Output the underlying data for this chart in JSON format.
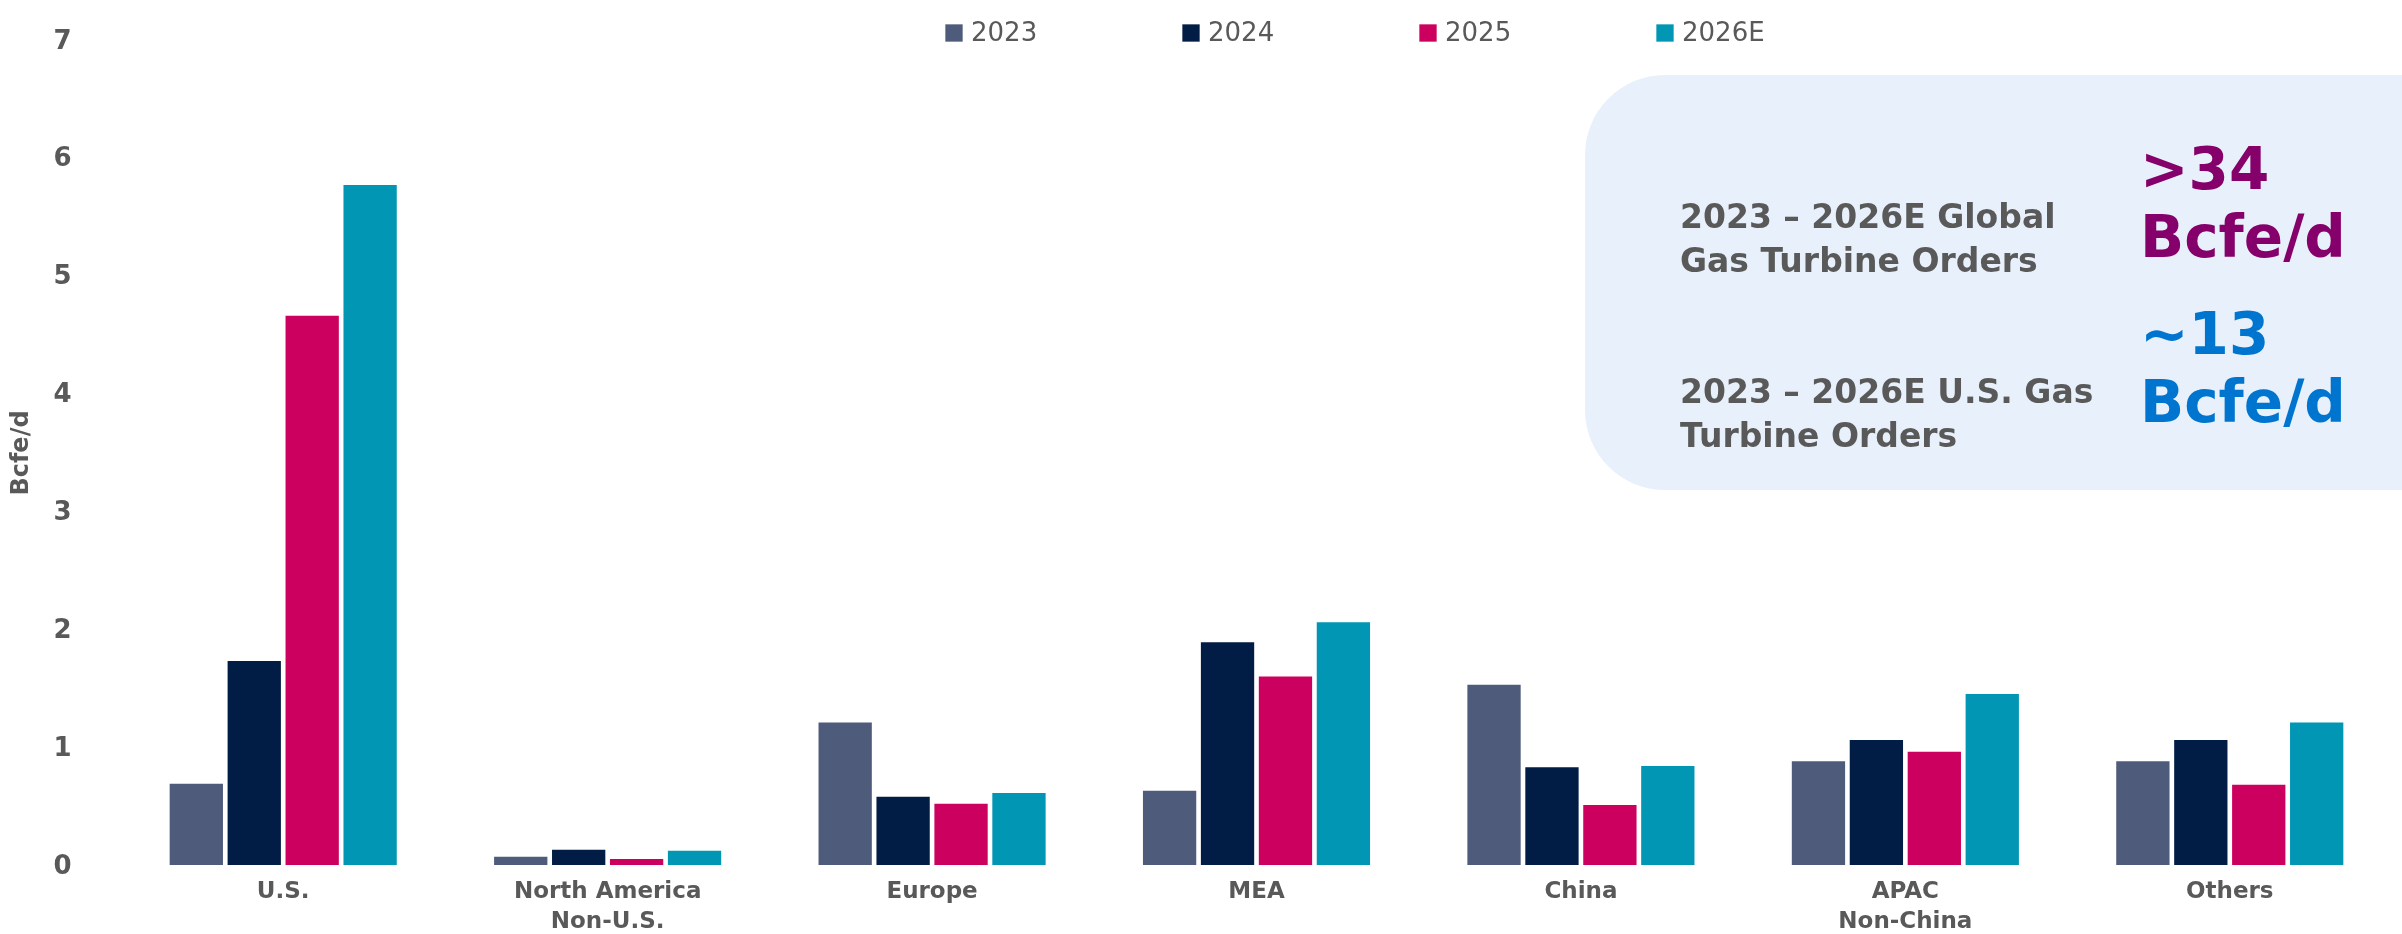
{
  "chart_data": {
    "type": "bar",
    "ylabel": "Bcfe/d",
    "categories": [
      "U.S.",
      "North America\nNon-U.S.",
      "Europe",
      "MEA",
      "China",
      "APAC\nNon-China",
      "Others"
    ],
    "series": [
      {
        "name": "2023",
        "color": "#4f5b7a",
        "values": [
          0.69,
          0.07,
          1.21,
          0.63,
          1.53,
          0.88,
          0.88
        ]
      },
      {
        "name": "2024",
        "color": "#021d45",
        "values": [
          1.73,
          0.13,
          0.58,
          1.89,
          0.83,
          1.06,
          1.06
        ]
      },
      {
        "name": "2025",
        "color": "#cc005e",
        "values": [
          4.66,
          0.05,
          0.52,
          1.6,
          0.51,
          0.96,
          0.68
        ]
      },
      {
        "name": "2026E",
        "color": "#0096b4",
        "values": [
          5.77,
          0.12,
          0.61,
          2.06,
          0.84,
          1.45,
          1.21
        ]
      }
    ],
    "ylim": [
      0,
      7
    ],
    "yticks": [
      0,
      1,
      2,
      3,
      4,
      5,
      6,
      7
    ],
    "grid": false,
    "legend": "top",
    "annotations": [
      "2023 – 2026E Global Gas Turbine Orders",
      ">34 Bcfe/d",
      "2023 – 2026E U.S. Gas Turbine Orders",
      "~13 Bcfe/d"
    ]
  }
}
